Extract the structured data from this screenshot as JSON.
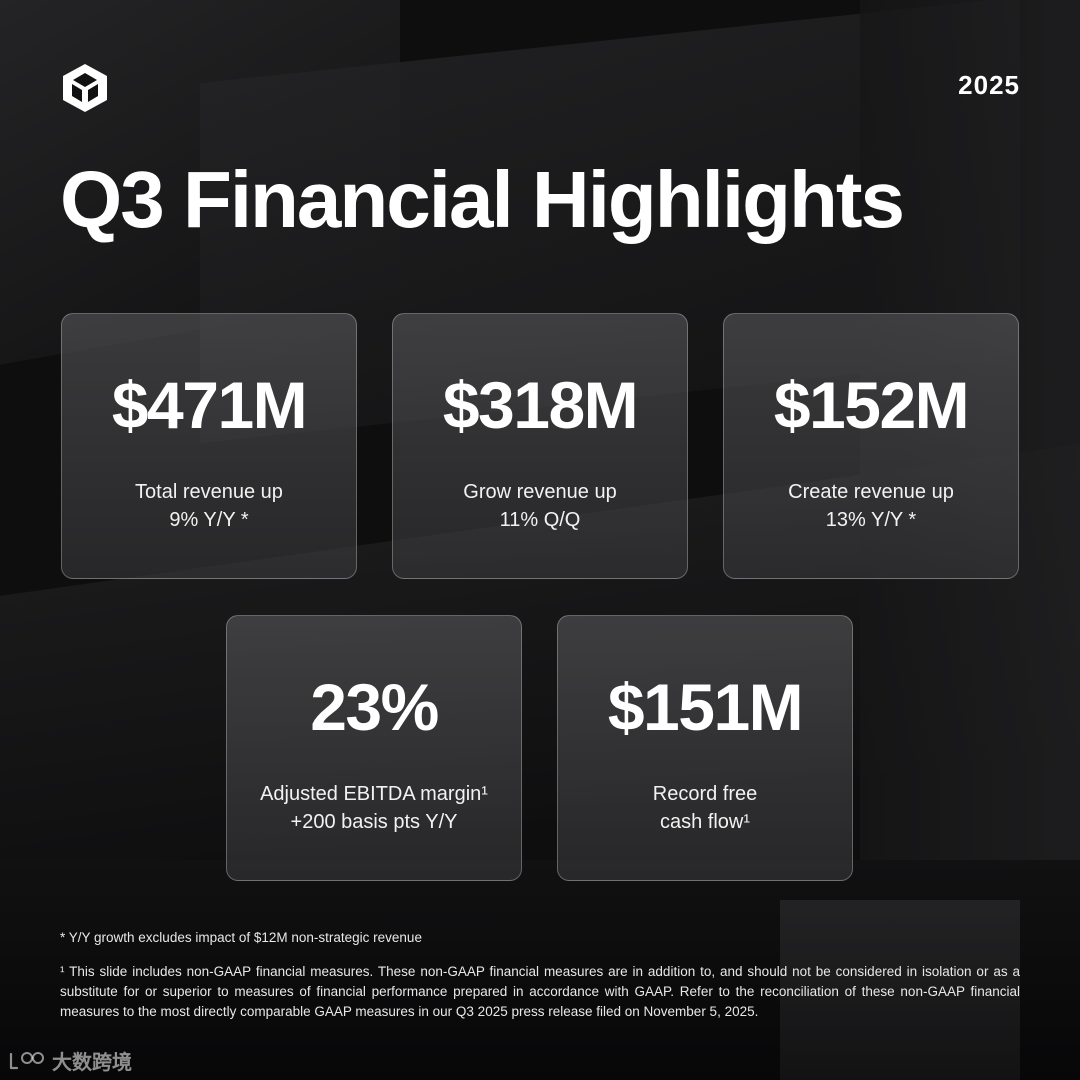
{
  "header": {
    "logo_icon": "unity-cube-logo-icon",
    "year": "2025",
    "title": "Q3 Financial Highlights"
  },
  "cards": [
    {
      "value": "$471M",
      "line1": "Total revenue up",
      "line2": "9% Y/Y *"
    },
    {
      "value": "$318M",
      "line1": "Grow revenue up",
      "line2": "11% Q/Q"
    },
    {
      "value": "$152M",
      "line1": "Create revenue up",
      "line2": "13% Y/Y *"
    },
    {
      "value": "23%",
      "line1": "Adjusted EBITDA margin¹",
      "line2": "+200 basis pts Y/Y"
    },
    {
      "value": "$151M",
      "line1": "Record free",
      "line2": "cash flow¹"
    }
  ],
  "footnotes": {
    "note1": "* Y/Y growth excludes impact of $12M non-strategic revenue",
    "note2": "¹ This slide includes non-GAAP financial measures. These non-GAAP financial measures are in addition to, and should not be considered in isolation or as a substitute for or superior to measures of financial performance prepared in accordance with GAAP.  Refer to the reconciliation of these non-GAAP financial measures to the most directly comparable GAAP measures in our Q3 2025 press release filed on November 5, 2025."
  },
  "watermark": {
    "icon": "dashuju-logo-icon",
    "text": "大数跨境"
  }
}
